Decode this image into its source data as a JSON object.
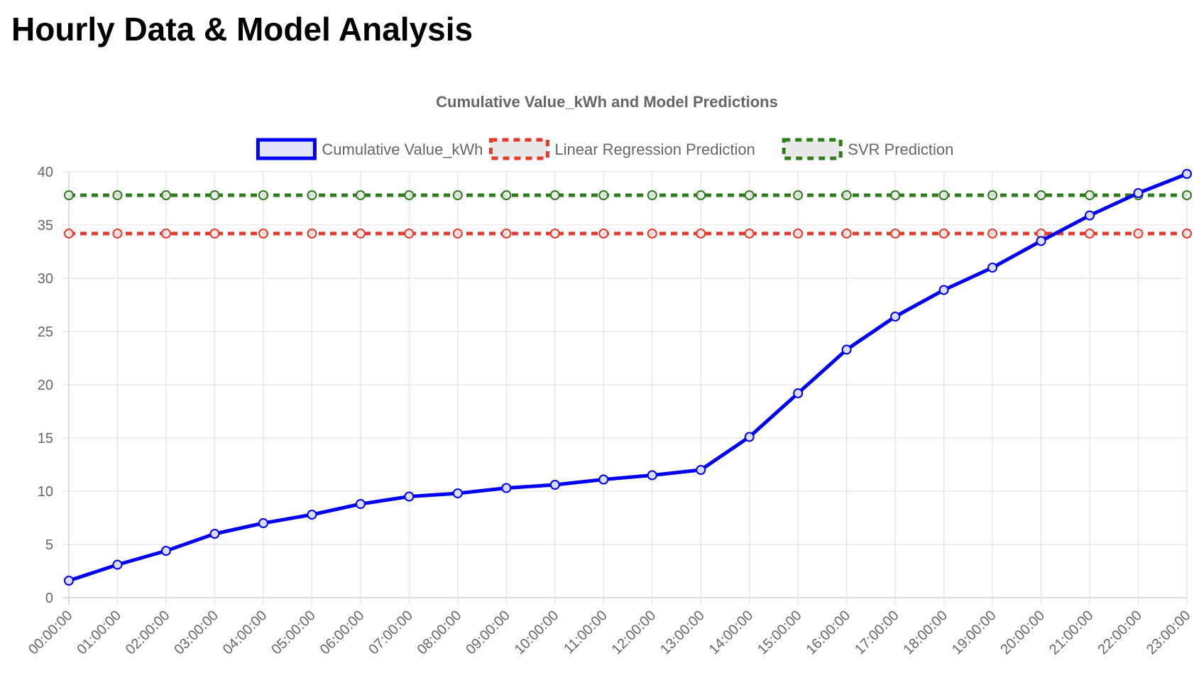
{
  "page": {
    "title": "Hourly Data & Model Analysis"
  },
  "chart_data": {
    "type": "line",
    "title": "Cumulative Value_kWh and Model Predictions",
    "xlabel": "",
    "ylabel": "",
    "ylim": [
      0,
      40
    ],
    "yticks": [
      "0",
      "5",
      "10",
      "15",
      "20",
      "25",
      "30",
      "35",
      "40"
    ],
    "grid": true,
    "legend_position": "top-center",
    "categories": [
      "00:00:00",
      "01:00:00",
      "02:00:00",
      "03:00:00",
      "04:00:00",
      "05:00:00",
      "06:00:00",
      "07:00:00",
      "08:00:00",
      "09:00:00",
      "10:00:00",
      "11:00:00",
      "12:00:00",
      "13:00:00",
      "14:00:00",
      "15:00:00",
      "16:00:00",
      "17:00:00",
      "18:00:00",
      "19:00:00",
      "20:00:00",
      "21:00:00",
      "22:00:00",
      "23:00:00"
    ],
    "series": [
      {
        "name": "Cumulative Value_kWh",
        "color": "#0000ee",
        "style": "solid",
        "values": [
          1.6,
          3.1,
          4.4,
          6.0,
          7.0,
          7.8,
          8.8,
          9.5,
          9.8,
          10.3,
          10.6,
          11.1,
          11.5,
          12.0,
          15.1,
          19.2,
          23.3,
          26.4,
          28.9,
          31.0,
          33.5,
          35.9,
          38.0,
          39.8
        ]
      },
      {
        "name": "Linear Regression Prediction",
        "color": "#e53a2c",
        "style": "dashed",
        "values": [
          34.2,
          34.2,
          34.2,
          34.2,
          34.2,
          34.2,
          34.2,
          34.2,
          34.2,
          34.2,
          34.2,
          34.2,
          34.2,
          34.2,
          34.2,
          34.2,
          34.2,
          34.2,
          34.2,
          34.2,
          34.2,
          34.2,
          34.2,
          34.2
        ]
      },
      {
        "name": "SVR Prediction",
        "color": "#2e7d1a",
        "style": "dashed",
        "values": [
          37.8,
          37.8,
          37.8,
          37.8,
          37.8,
          37.8,
          37.8,
          37.8,
          37.8,
          37.8,
          37.8,
          37.8,
          37.8,
          37.8,
          37.8,
          37.8,
          37.8,
          37.8,
          37.8,
          37.8,
          37.8,
          37.8,
          37.8,
          37.8
        ]
      }
    ]
  }
}
